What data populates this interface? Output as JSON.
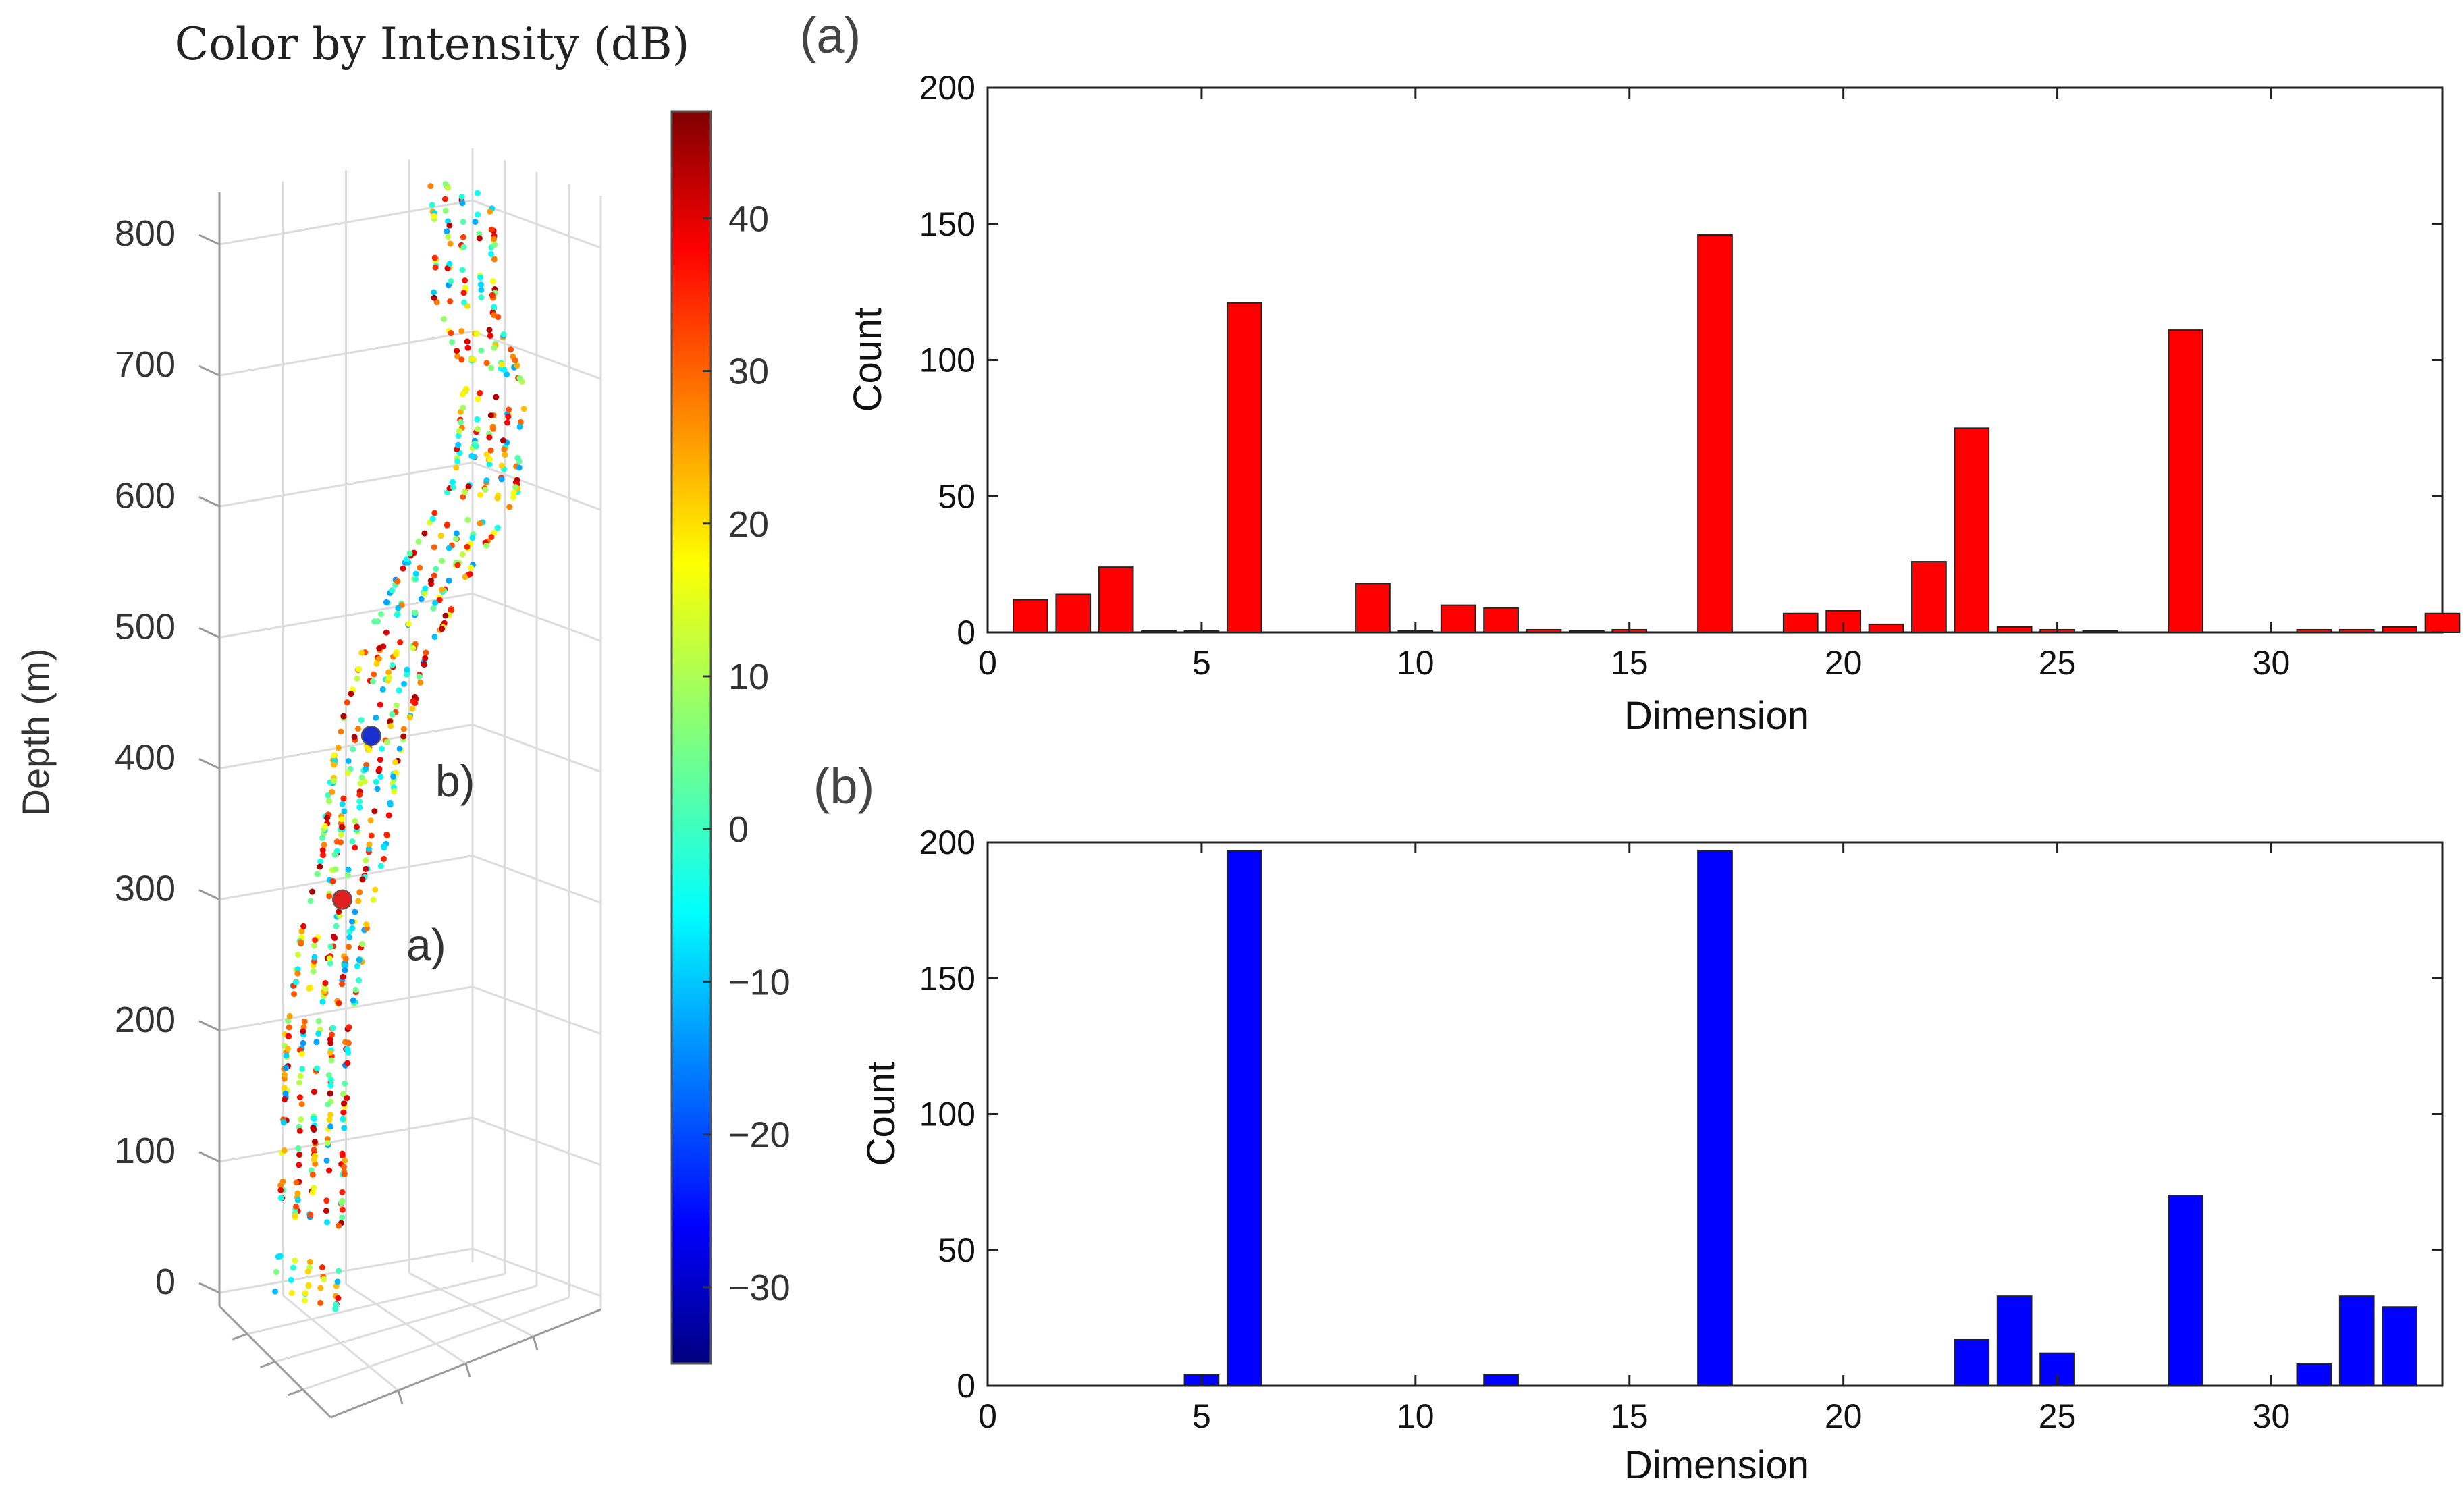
{
  "panel_a_label": "(a)",
  "panel_b_label": "(b)",
  "chart_data": [
    {
      "type": "scatter3d",
      "title": "Color by Intensity (dB)",
      "zlabel": "Depth (m)",
      "zticks": [
        "0",
        "100",
        "200",
        "300",
        "400",
        "500",
        "600",
        "700",
        "800"
      ],
      "zlim": [
        0,
        850
      ],
      "colorbar": {
        "label": "Intensity (dB)",
        "range": [
          -35,
          47
        ],
        "ticks": [
          "40",
          "30",
          "20",
          "10",
          "0",
          "−10",
          "−20",
          "−30"
        ],
        "colormap": "jet"
      },
      "markers": [
        {
          "label": "a)",
          "depth": 300,
          "color": "#e02020"
        },
        {
          "label": "b)",
          "depth": 425,
          "color": "#1a2fd0"
        }
      ]
    },
    {
      "type": "bar",
      "panel": "(a)",
      "color": "#ff0000",
      "xlabel": "Dimension",
      "ylabel": "Count",
      "xlim": [
        0,
        34
      ],
      "ylim": [
        0,
        200
      ],
      "xticks": [
        "0",
        "5",
        "10",
        "15",
        "20",
        "25",
        "30"
      ],
      "yticks": [
        "0",
        "50",
        "100",
        "150",
        "200"
      ],
      "x": [
        1,
        2,
        3,
        4,
        5,
        6,
        9,
        10,
        11,
        12,
        13,
        14,
        15,
        17,
        19,
        20,
        21,
        22,
        23,
        24,
        25,
        26,
        28,
        31,
        32,
        33,
        34
      ],
      "values": [
        12,
        14,
        24,
        0.5,
        0.5,
        121,
        18,
        0.5,
        10,
        9,
        1,
        0.5,
        1,
        146,
        7,
        8,
        3,
        26,
        75,
        2,
        1,
        0.5,
        111,
        1,
        1,
        2,
        7
      ]
    },
    {
      "type": "bar",
      "panel": "(b)",
      "color": "#0000ff",
      "xlabel": "Dimension",
      "ylabel": "Count",
      "xlim": [
        0,
        34
      ],
      "ylim": [
        0,
        200
      ],
      "xticks": [
        "0",
        "5",
        "10",
        "15",
        "20",
        "25",
        "30"
      ],
      "yticks": [
        "0",
        "50",
        "100",
        "150",
        "200"
      ],
      "x": [
        5,
        6,
        12,
        17,
        23,
        24,
        25,
        28,
        31,
        32,
        33
      ],
      "values": [
        4,
        197,
        4,
        197,
        17,
        33,
        12,
        70,
        8,
        33,
        29
      ]
    }
  ]
}
